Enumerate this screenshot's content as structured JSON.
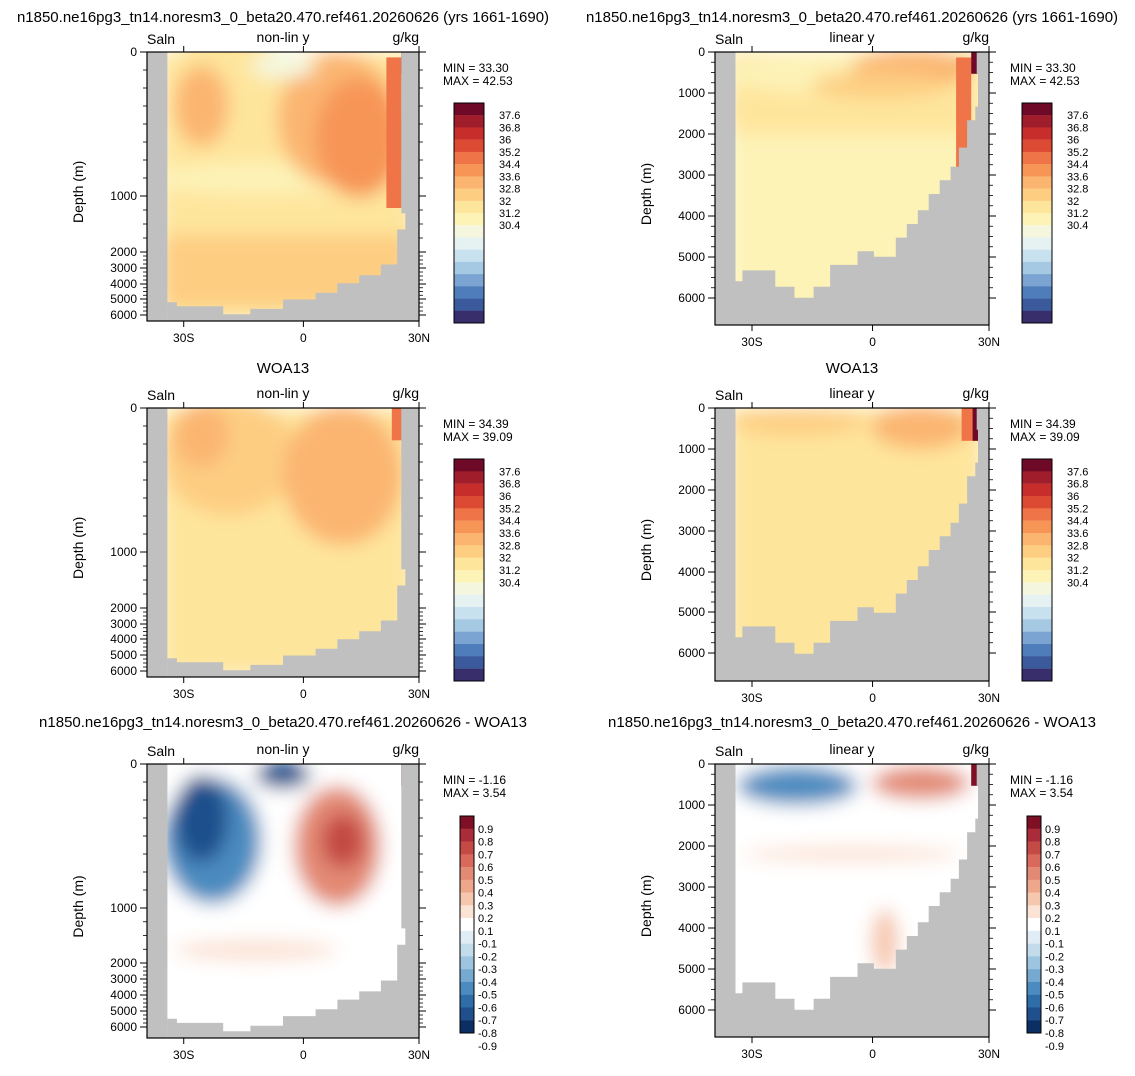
{
  "colors": {
    "land": "#c0c0c0",
    "salinity_scale": [
      "#372e6b",
      "#3a5a9c",
      "#4f7cba",
      "#7ba4d2",
      "#a5c8e3",
      "#c8e1ee",
      "#e6f1f2",
      "#f4f7de",
      "#fdf3b7",
      "#fee59c",
      "#fdce82",
      "#fbb571",
      "#f79556",
      "#ef7447",
      "#dd4a33",
      "#c72d2a",
      "#a01e2b",
      "#6e0a27"
    ],
    "diff_scale": [
      "#0b2f64",
      "#1f4f8c",
      "#2f6da8",
      "#4b8bc0",
      "#76a9d0",
      "#9ec5e0",
      "#c3dcec",
      "#e0edf5",
      "#ffffff",
      "#fbe3d5",
      "#f6c7af",
      "#efa78c",
      "#e38a74",
      "#d8695b",
      "#c44a45",
      "#ab2c39",
      "#7f0f25"
    ]
  },
  "chart_data": [
    {
      "type": "heatmap",
      "title": "n1850.ne16pg3_tn14.noresm3_0_beta20.470.ref461.20260626 (yrs 1661-1690)",
      "left_label": "Saln",
      "center_label": "non-lin y",
      "right_label": "g/kg",
      "ylabel": "Depth (m)",
      "ylim": [
        0,
        6500
      ],
      "y_scale": "non-linear",
      "yticks": [
        "0",
        "1000",
        "2000",
        "3000",
        "4000",
        "5000",
        "6000"
      ],
      "xticks": [
        "30S",
        "0",
        "30N"
      ],
      "min_label": "MIN =  33.30",
      "max_label": "MAX =  42.53",
      "colorbar_labels": [
        "37.6",
        "36.8",
        "36",
        "35.2",
        "34.4",
        "33.6",
        "32.8",
        "32",
        "31.2",
        "30.4"
      ],
      "colorbar": "salinity"
    },
    {
      "type": "heatmap",
      "title": "n1850.ne16pg3_tn14.noresm3_0_beta20.470.ref461.20260626 (yrs 1661-1690)",
      "left_label": "Saln",
      "center_label": "linear y",
      "right_label": "g/kg",
      "ylabel": "Depth (m)",
      "ylim": [
        0,
        6800
      ],
      "y_scale": "linear",
      "yticks": [
        "0",
        "1000",
        "2000",
        "3000",
        "4000",
        "5000",
        "6000"
      ],
      "xticks": [
        "30S",
        "0",
        "30N"
      ],
      "min_label": "MIN =  33.30",
      "max_label": "MAX =  42.53",
      "colorbar_labels": [
        "37.6",
        "36.8",
        "36",
        "35.2",
        "34.4",
        "33.6",
        "32.8",
        "32",
        "31.2",
        "30.4"
      ],
      "colorbar": "salinity"
    },
    {
      "type": "heatmap",
      "title": "WOA13",
      "left_label": "Saln",
      "center_label": "non-lin y",
      "right_label": "g/kg",
      "ylabel": "Depth (m)",
      "ylim": [
        0,
        6500
      ],
      "y_scale": "non-linear",
      "yticks": [
        "0",
        "1000",
        "2000",
        "3000",
        "4000",
        "5000",
        "6000"
      ],
      "xticks": [
        "30S",
        "0",
        "30N"
      ],
      "min_label": "MIN =  34.39",
      "max_label": "MAX =  39.09",
      "colorbar_labels": [
        "37.6",
        "36.8",
        "36",
        "35.2",
        "34.4",
        "33.6",
        "32.8",
        "32",
        "31.2",
        "30.4"
      ],
      "colorbar": "salinity"
    },
    {
      "type": "heatmap",
      "title": "WOA13",
      "left_label": "Saln",
      "center_label": "linear y",
      "right_label": "g/kg",
      "ylabel": "Depth (m)",
      "ylim": [
        0,
        6800
      ],
      "y_scale": "linear",
      "yticks": [
        "0",
        "1000",
        "2000",
        "3000",
        "4000",
        "5000",
        "6000"
      ],
      "xticks": [
        "30S",
        "0",
        "30N"
      ],
      "min_label": "MIN =  34.39",
      "max_label": "MAX =  39.09",
      "colorbar_labels": [
        "37.6",
        "36.8",
        "36",
        "35.2",
        "34.4",
        "33.6",
        "32.8",
        "32",
        "31.2",
        "30.4"
      ],
      "colorbar": "salinity"
    },
    {
      "type": "heatmap",
      "title": "n1850.ne16pg3_tn14.noresm3_0_beta20.470.ref461.20260626 - WOA13",
      "left_label": "Saln",
      "center_label": "non-lin y",
      "right_label": "g/kg",
      "ylabel": "Depth (m)",
      "ylim": [
        0,
        6500
      ],
      "y_scale": "non-linear",
      "yticks": [
        "0",
        "1000",
        "2000",
        "3000",
        "4000",
        "5000",
        "6000"
      ],
      "xticks": [
        "30S",
        "0",
        "30N"
      ],
      "min_label": "MIN = -1.16",
      "max_label": "MAX =  3.54",
      "colorbar_labels": [
        "0.9",
        "0.8",
        "0.7",
        "0.6",
        "0.5",
        "0.4",
        "0.3",
        "0.2",
        "0.1",
        "-0.1",
        "-0.2",
        "-0.3",
        "-0.4",
        "-0.5",
        "-0.6",
        "-0.7",
        "-0.8",
        "-0.9"
      ],
      "colorbar": "diff"
    },
    {
      "type": "heatmap",
      "title": "n1850.ne16pg3_tn14.noresm3_0_beta20.470.ref461.20260626 - WOA13",
      "left_label": "Saln",
      "center_label": "linear y",
      "right_label": "g/kg",
      "ylabel": "Depth (m)",
      "ylim": [
        0,
        6800
      ],
      "y_scale": "linear",
      "yticks": [
        "0",
        "1000",
        "2000",
        "3000",
        "4000",
        "5000",
        "6000"
      ],
      "xticks": [
        "30S",
        "0",
        "30N"
      ],
      "min_label": "MIN = -1.16",
      "max_label": "MAX =  3.54",
      "colorbar_labels": [
        "0.9",
        "0.8",
        "0.7",
        "0.6",
        "0.5",
        "0.4",
        "0.3",
        "0.2",
        "0.1",
        "-0.1",
        "-0.2",
        "-0.3",
        "-0.4",
        "-0.5",
        "-0.6",
        "-0.7",
        "-0.8",
        "-0.9"
      ],
      "colorbar": "diff"
    }
  ]
}
